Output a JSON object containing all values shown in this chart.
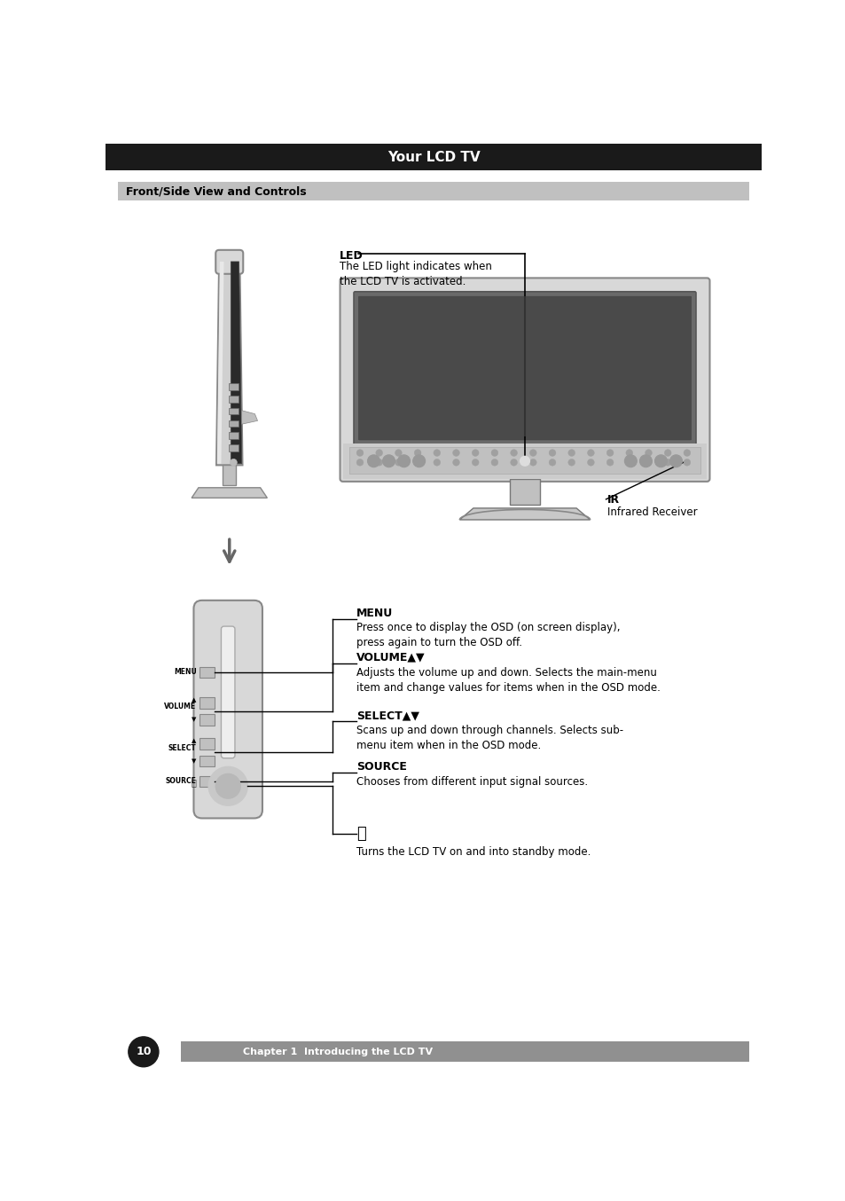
{
  "page_bg": "#ffffff",
  "top_bar_color": "#1a1a1a",
  "top_bar_text": "Your LCD TV",
  "top_bar_text_color": "#ffffff",
  "section_bar_color": "#c0c0c0",
  "section_bar_text": "Front/Side View and Controls",
  "section_bar_text_color": "#000000",
  "bottom_bar_color": "#909090",
  "bottom_bar_text": "Chapter 1  Introducing the LCD TV",
  "bottom_bar_text_color": "#ffffff",
  "page_num": "10",
  "led_label": "LED",
  "led_desc": "The LED light indicates when\nthe LCD TV is activated.",
  "ir_label": "IR",
  "ir_desc": "Infrared Receiver",
  "menu_label": "MENU",
  "menu_desc": "Press once to display the OSD (on screen display),\npress again to turn the OSD off.",
  "volume_label": "VOLUME▲▼",
  "volume_desc": "Adjusts the volume up and down. Selects the main-menu\nitem and change values for items when in the OSD mode.",
  "select_label": "SELECT▲▼",
  "select_desc": "Scans up and down through channels. Selects sub-\nmenu item when in the OSD mode.",
  "source_label": "SOURCE",
  "source_desc": "Chooses from different input signal sources.",
  "power_desc": "Turns the LCD TV on and into standby mode."
}
